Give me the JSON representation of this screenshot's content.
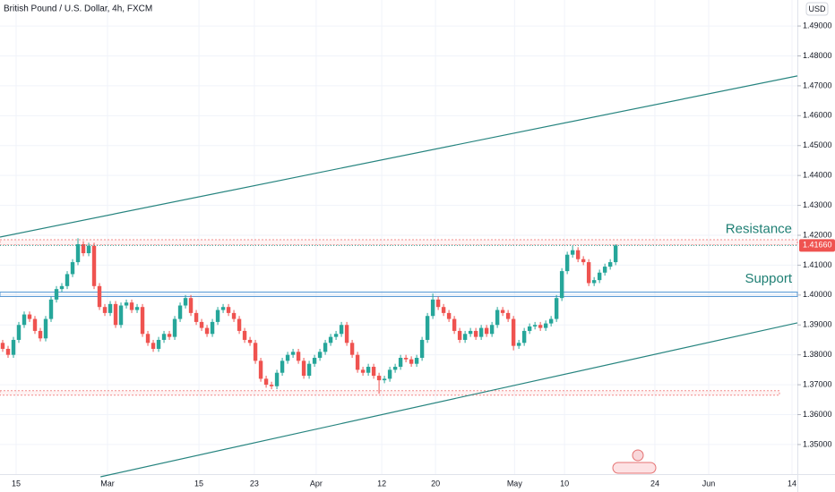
{
  "chart_data": {
    "type": "candlestick",
    "title": "British Pound / U.S. Dollar, 4h, FXCM",
    "currency": "USD",
    "up_color": "#26a69a",
    "down_color": "#ef5350",
    "open": [
      1.384,
      1.382,
      1.38,
      1.385,
      1.39,
      1.3935,
      1.392,
      1.388,
      1.3855,
      1.392,
      1.3985,
      1.402,
      1.403,
      1.407,
      1.411,
      1.417,
      1.414,
      1.4165,
      1.403,
      1.396,
      1.394,
      1.397,
      1.39,
      1.3965,
      1.3975,
      1.395,
      1.396,
      1.387,
      1.384,
      1.382,
      1.385,
      1.387,
      1.386,
      1.392,
      1.3965,
      1.399,
      1.394,
      1.391,
      1.389,
      1.387,
      1.391,
      1.395,
      1.396,
      1.394,
      1.392,
      1.388,
      1.385,
      1.384,
      1.378,
      1.372,
      1.37,
      1.3695,
      1.374,
      1.378,
      1.38,
      1.381,
      1.378,
      1.373,
      1.377,
      1.379,
      1.381,
      1.384,
      1.386,
      1.387,
      1.39,
      1.384,
      1.38,
      1.375,
      1.374,
      1.376,
      1.373,
      1.3715,
      1.372,
      1.375,
      1.376,
      1.379,
      1.3785,
      1.377,
      1.379,
      1.385,
      1.393,
      1.3985,
      1.396,
      1.394,
      1.392,
      1.388,
      1.385,
      1.387,
      1.388,
      1.386,
      1.389,
      1.387,
      1.39,
      1.395,
      1.394,
      1.392,
      1.383,
      1.384,
      1.388,
      1.3895,
      1.39,
      1.389,
      1.3905,
      1.392,
      1.399,
      1.408,
      1.4135,
      1.415,
      1.412,
      1.411,
      1.404,
      1.405,
      1.4075,
      1.4095,
      1.411
    ],
    "high": [
      1.385,
      1.383,
      1.386,
      1.391,
      1.3945,
      1.3945,
      1.393,
      1.389,
      1.393,
      1.3995,
      1.403,
      1.404,
      1.408,
      1.412,
      1.419,
      1.418,
      1.4175,
      1.4175,
      1.404,
      1.397,
      1.398,
      1.398,
      1.3975,
      1.3985,
      1.3985,
      1.397,
      1.397,
      1.388,
      1.385,
      1.386,
      1.388,
      1.388,
      1.393,
      1.3975,
      1.4,
      1.4,
      1.395,
      1.392,
      1.39,
      1.392,
      1.396,
      1.397,
      1.397,
      1.395,
      1.393,
      1.389,
      1.386,
      1.385,
      1.379,
      1.373,
      1.371,
      1.375,
      1.379,
      1.381,
      1.382,
      1.382,
      1.379,
      1.378,
      1.38,
      1.382,
      1.385,
      1.387,
      1.388,
      1.391,
      1.391,
      1.385,
      1.381,
      1.376,
      1.377,
      1.377,
      1.374,
      1.373,
      1.376,
      1.377,
      1.38,
      1.38,
      1.3795,
      1.38,
      1.386,
      1.394,
      1.4005,
      1.3995,
      1.397,
      1.395,
      1.393,
      1.389,
      1.388,
      1.389,
      1.389,
      1.39,
      1.39,
      1.391,
      1.396,
      1.396,
      1.395,
      1.393,
      1.385,
      1.389,
      1.3905,
      1.391,
      1.391,
      1.3915,
      1.393,
      1.4,
      1.409,
      1.4145,
      1.4165,
      1.416,
      1.413,
      1.412,
      1.406,
      1.4085,
      1.4105,
      1.412,
      1.417
    ],
    "low": [
      1.381,
      1.379,
      1.379,
      1.384,
      1.389,
      1.391,
      1.387,
      1.3845,
      1.3845,
      1.391,
      1.3975,
      1.401,
      1.402,
      1.406,
      1.41,
      1.413,
      1.413,
      1.402,
      1.395,
      1.393,
      1.393,
      1.389,
      1.389,
      1.3955,
      1.394,
      1.394,
      1.386,
      1.383,
      1.381,
      1.381,
      1.384,
      1.385,
      1.385,
      1.391,
      1.3955,
      1.393,
      1.39,
      1.388,
      1.386,
      1.386,
      1.39,
      1.394,
      1.393,
      1.391,
      1.387,
      1.384,
      1.383,
      1.377,
      1.371,
      1.369,
      1.3685,
      1.3685,
      1.373,
      1.377,
      1.379,
      1.377,
      1.372,
      1.372,
      1.376,
      1.378,
      1.38,
      1.383,
      1.385,
      1.386,
      1.383,
      1.379,
      1.374,
      1.373,
      1.373,
      1.372,
      1.367,
      1.3705,
      1.371,
      1.374,
      1.375,
      1.3775,
      1.376,
      1.376,
      1.378,
      1.384,
      1.392,
      1.395,
      1.393,
      1.391,
      1.387,
      1.384,
      1.384,
      1.386,
      1.385,
      1.385,
      1.386,
      1.386,
      1.389,
      1.393,
      1.391,
      1.3815,
      1.382,
      1.383,
      1.387,
      1.3885,
      1.388,
      1.388,
      1.3895,
      1.391,
      1.398,
      1.407,
      1.4125,
      1.411,
      1.41,
      1.403,
      1.403,
      1.404,
      1.4065,
      1.4085,
      1.41
    ],
    "close": [
      1.382,
      1.38,
      1.385,
      1.39,
      1.3935,
      1.392,
      1.388,
      1.3855,
      1.392,
      1.3985,
      1.402,
      1.403,
      1.407,
      1.411,
      1.417,
      1.414,
      1.4165,
      1.403,
      1.396,
      1.394,
      1.397,
      1.39,
      1.3965,
      1.3975,
      1.395,
      1.396,
      1.387,
      1.384,
      1.382,
      1.385,
      1.387,
      1.386,
      1.392,
      1.3965,
      1.399,
      1.394,
      1.391,
      1.389,
      1.387,
      1.391,
      1.395,
      1.396,
      1.394,
      1.392,
      1.388,
      1.385,
      1.384,
      1.378,
      1.372,
      1.37,
      1.3695,
      1.374,
      1.378,
      1.38,
      1.381,
      1.378,
      1.373,
      1.377,
      1.379,
      1.381,
      1.384,
      1.386,
      1.387,
      1.39,
      1.384,
      1.38,
      1.375,
      1.374,
      1.376,
      1.373,
      1.3715,
      1.372,
      1.375,
      1.376,
      1.379,
      1.3785,
      1.377,
      1.379,
      1.385,
      1.393,
      1.3985,
      1.396,
      1.394,
      1.392,
      1.388,
      1.385,
      1.387,
      1.388,
      1.386,
      1.389,
      1.387,
      1.39,
      1.395,
      1.394,
      1.392,
      1.383,
      1.384,
      1.388,
      1.3895,
      1.39,
      1.389,
      1.3905,
      1.392,
      1.399,
      1.408,
      1.4135,
      1.415,
      1.412,
      1.411,
      1.404,
      1.405,
      1.4075,
      1.4095,
      1.411,
      1.4166
    ],
    "xlim": [
      -0.5,
      147.8
    ],
    "xticks": [
      {
        "value": 2.5,
        "label": "15"
      },
      {
        "value": 19.5,
        "label": "Mar"
      },
      {
        "value": 36.5,
        "label": "15"
      },
      {
        "value": 46.8,
        "label": "23"
      },
      {
        "value": 58.3,
        "label": "Apr"
      },
      {
        "value": 70.5,
        "label": "12"
      },
      {
        "value": 80.5,
        "label": "20"
      },
      {
        "value": 95.2,
        "label": "May"
      },
      {
        "value": 104.5,
        "label": "10"
      },
      {
        "value": 121.3,
        "label": "24"
      },
      {
        "value": 131.3,
        "label": "Jun"
      },
      {
        "value": 146.8,
        "label": "14"
      }
    ],
    "ylim": [
      1.3401,
      1.4987
    ],
    "yticks": [
      {
        "value": 1.35,
        "label": "1.35000"
      },
      {
        "value": 1.36,
        "label": "1.36000"
      },
      {
        "value": 1.37,
        "label": "1.37000"
      },
      {
        "value": 1.38,
        "label": "1.38000"
      },
      {
        "value": 1.39,
        "label": "1.39000"
      },
      {
        "value": 1.4,
        "label": "1.40000"
      },
      {
        "value": 1.41,
        "label": "1.41000"
      },
      {
        "value": 1.42,
        "label": "1.42000"
      },
      {
        "value": 1.43,
        "label": "1.43000"
      },
      {
        "value": 1.44,
        "label": "1.44000"
      },
      {
        "value": 1.45,
        "label": "1.45000"
      },
      {
        "value": 1.46,
        "label": "1.46000"
      },
      {
        "value": 1.47,
        "label": "1.47000"
      },
      {
        "value": 1.48,
        "label": "1.48000"
      },
      {
        "value": 1.49,
        "label": "1.49000"
      }
    ],
    "grid": true,
    "last_price": {
      "value": 1.4166,
      "label": "1.41660"
    },
    "zones": [
      {
        "from": 1.4168,
        "to": 1.4185,
        "color": "#f28b8b"
      },
      {
        "from": 1.3995,
        "to": 1.401,
        "color": "#5b9bd5"
      },
      {
        "from": 1.3665,
        "to": 1.368,
        "color": "#f28b8b"
      }
    ],
    "trend_lines": [
      {
        "x": [
          -0.5,
          147.8
        ],
        "y": [
          1.4194,
          1.4733
        ],
        "color": "#26847f"
      },
      {
        "x": [
          18.2,
          147.8
        ],
        "y": [
          1.3392,
          1.3907
        ],
        "color": "#26847f"
      }
    ],
    "annotations": [
      {
        "text": "Resistance",
        "value": 1.4195
      },
      {
        "text": "Support",
        "value": 1.403
      }
    ]
  }
}
